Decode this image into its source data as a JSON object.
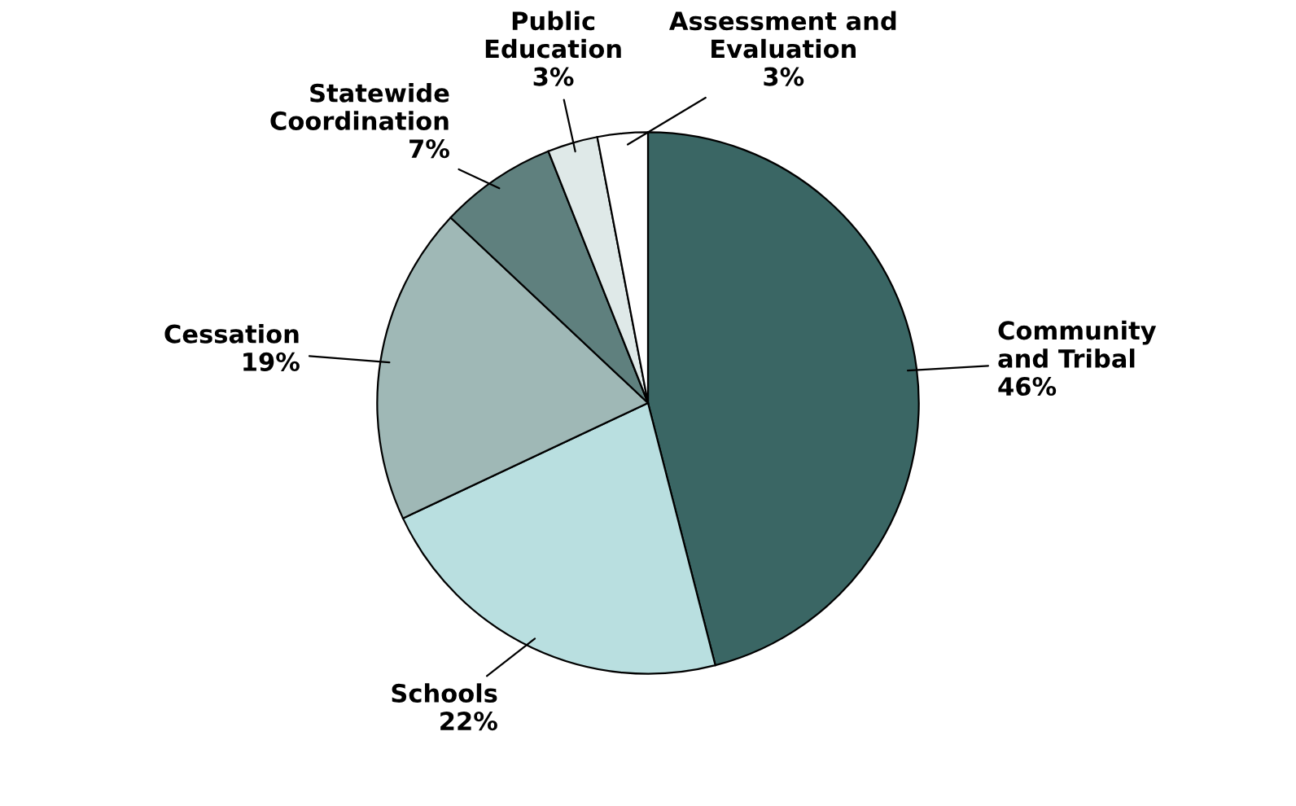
{
  "chart_data": {
    "type": "pie",
    "categories": [
      "Community and Tribal",
      "Schools",
      "Cessation",
      "Statewide Coordination",
      "Public Education",
      "Assessment and Evaluation"
    ],
    "values": [
      46,
      22,
      19,
      7,
      3,
      3
    ],
    "value_labels": [
      "46%",
      "22%",
      "19%",
      "7%",
      "3%",
      "3%"
    ],
    "colors": [
      "#3a6664",
      "#b9dfe0",
      "#9fb8b6",
      "#5f807e",
      "#dfe9e8",
      "#ffffff"
    ],
    "legend": false
  }
}
